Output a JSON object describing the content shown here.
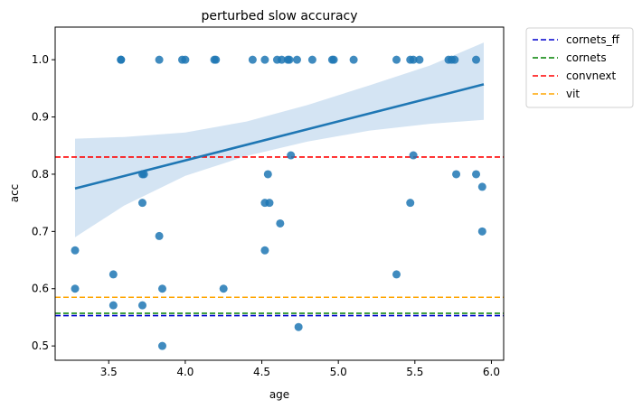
{
  "chart_data": {
    "type": "scatter",
    "title": "perturbed slow accuracy",
    "xlabel": "age",
    "ylabel": "acc",
    "xlim": [
      3.15,
      6.08
    ],
    "ylim": [
      0.475,
      1.057
    ],
    "x_ticks": [
      3.5,
      4.0,
      4.5,
      5.0,
      5.5,
      6.0
    ],
    "x_tick_labels": [
      "3.5",
      "4.0",
      "4.5",
      "5.0",
      "5.5",
      "6.0"
    ],
    "y_ticks": [
      0.5,
      0.6,
      0.7,
      0.8,
      0.9,
      1.0
    ],
    "y_tick_labels": [
      "0.5",
      "0.6",
      "0.7",
      "0.8",
      "0.9",
      "1.0"
    ],
    "grid": false,
    "legend_position": "outside-top-right",
    "colors": {
      "points": "#1f77b4",
      "fit": "#1f77b4",
      "band": "#c6dbef"
    },
    "points": [
      {
        "x": 3.28,
        "y": 0.667
      },
      {
        "x": 3.28,
        "y": 0.6
      },
      {
        "x": 3.53,
        "y": 0.625
      },
      {
        "x": 3.53,
        "y": 0.571
      },
      {
        "x": 3.58,
        "y": 1.0
      },
      {
        "x": 3.58,
        "y": 1.0
      },
      {
        "x": 3.72,
        "y": 0.8
      },
      {
        "x": 3.73,
        "y": 0.8
      },
      {
        "x": 3.72,
        "y": 0.75
      },
      {
        "x": 3.72,
        "y": 0.571
      },
      {
        "x": 3.83,
        "y": 1.0
      },
      {
        "x": 3.83,
        "y": 0.692
      },
      {
        "x": 3.85,
        "y": 0.6
      },
      {
        "x": 3.85,
        "y": 0.5
      },
      {
        "x": 3.98,
        "y": 1.0
      },
      {
        "x": 4.0,
        "y": 1.0
      },
      {
        "x": 4.19,
        "y": 1.0
      },
      {
        "x": 4.2,
        "y": 1.0
      },
      {
        "x": 4.25,
        "y": 0.6
      },
      {
        "x": 4.44,
        "y": 1.0
      },
      {
        "x": 4.52,
        "y": 1.0
      },
      {
        "x": 4.52,
        "y": 0.75
      },
      {
        "x": 4.52,
        "y": 0.667
      },
      {
        "x": 4.54,
        "y": 0.8
      },
      {
        "x": 4.55,
        "y": 0.75
      },
      {
        "x": 4.6,
        "y": 1.0
      },
      {
        "x": 4.62,
        "y": 0.714
      },
      {
        "x": 4.63,
        "y": 1.0
      },
      {
        "x": 4.67,
        "y": 1.0
      },
      {
        "x": 4.68,
        "y": 1.0
      },
      {
        "x": 4.69,
        "y": 0.833
      },
      {
        "x": 4.73,
        "y": 1.0
      },
      {
        "x": 4.74,
        "y": 0.533
      },
      {
        "x": 4.83,
        "y": 1.0
      },
      {
        "x": 4.96,
        "y": 1.0
      },
      {
        "x": 4.97,
        "y": 1.0
      },
      {
        "x": 5.1,
        "y": 1.0
      },
      {
        "x": 5.38,
        "y": 1.0
      },
      {
        "x": 5.38,
        "y": 0.625
      },
      {
        "x": 5.47,
        "y": 1.0
      },
      {
        "x": 5.47,
        "y": 0.75
      },
      {
        "x": 5.49,
        "y": 1.0
      },
      {
        "x": 5.49,
        "y": 0.833
      },
      {
        "x": 5.53,
        "y": 1.0
      },
      {
        "x": 5.72,
        "y": 1.0
      },
      {
        "x": 5.74,
        "y": 1.0
      },
      {
        "x": 5.76,
        "y": 1.0
      },
      {
        "x": 5.77,
        "y": 0.8
      },
      {
        "x": 5.9,
        "y": 1.0
      },
      {
        "x": 5.9,
        "y": 0.8
      },
      {
        "x": 5.94,
        "y": 0.778
      },
      {
        "x": 5.94,
        "y": 0.7
      }
    ],
    "regression": {
      "x": [
        3.28,
        5.95
      ],
      "y": [
        0.775,
        0.957
      ]
    },
    "confidence_band": {
      "x": [
        3.28,
        3.6,
        4.0,
        4.4,
        4.8,
        5.2,
        5.6,
        5.95
      ],
      "upper": [
        0.862,
        0.865,
        0.873,
        0.892,
        0.921,
        0.955,
        0.99,
        1.03
      ],
      "lower": [
        0.69,
        0.745,
        0.797,
        0.832,
        0.857,
        0.876,
        0.888,
        0.895
      ]
    },
    "hlines": [
      {
        "name": "cornets_ff",
        "y": 0.553,
        "color": "#0000cd"
      },
      {
        "name": "cornets",
        "y": 0.557,
        "color": "#008000"
      },
      {
        "name": "convnext",
        "y": 0.83,
        "color": "#ff0000"
      },
      {
        "name": "vit",
        "y": 0.585,
        "color": "#ffa500"
      }
    ],
    "legend": [
      {
        "label": "cornets_ff",
        "color": "#0000cd"
      },
      {
        "label": "cornets",
        "color": "#008000"
      },
      {
        "label": "convnext",
        "color": "#ff0000"
      },
      {
        "label": "vit",
        "color": "#ffa500"
      }
    ]
  }
}
